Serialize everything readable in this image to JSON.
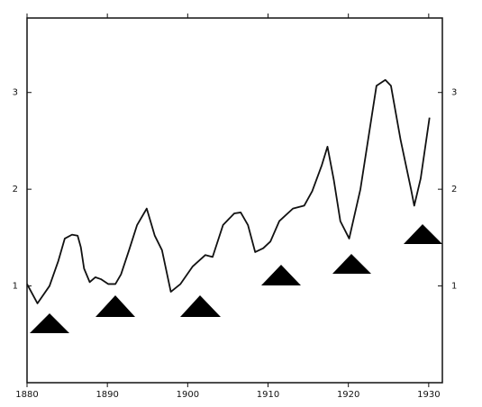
{
  "chart_data": {
    "type": "line",
    "x": [
      1880,
      1881.3,
      1882.8,
      1883.9,
      1884.7,
      1885.6,
      1886.3,
      1886.7,
      1887.1,
      1887.8,
      1888.5,
      1889.2,
      1890.1,
      1891.0,
      1891.7,
      1892.7,
      1893.7,
      1894.9,
      1895.9,
      1896.8,
      1897.9,
      1899.1,
      1900.6,
      1902.2,
      1903.1,
      1904.4,
      1905.8,
      1906.6,
      1907.5,
      1908.4,
      1909.4,
      1910.3,
      1911.4,
      1913.1,
      1914.5,
      1915.5,
      1916.7,
      1917.4,
      1918.2,
      1919.0,
      1920.1,
      1921.5,
      1923.5,
      1924.6,
      1925.3,
      1926.5,
      1927.8,
      1928.2,
      1929.0,
      1930.1
    ],
    "values": [
      1.02,
      0.82,
      1.0,
      1.26,
      1.49,
      1.53,
      1.52,
      1.4,
      1.18,
      1.04,
      1.09,
      1.07,
      1.02,
      1.02,
      1.12,
      1.37,
      1.63,
      1.8,
      1.52,
      1.37,
      0.94,
      1.02,
      1.2,
      1.32,
      1.3,
      1.63,
      1.75,
      1.76,
      1.63,
      1.35,
      1.39,
      1.46,
      1.67,
      1.8,
      1.83,
      1.98,
      2.25,
      2.44,
      2.09,
      1.67,
      1.49,
      2.0,
      3.07,
      3.13,
      3.07,
      2.51,
      2.0,
      1.83,
      2.11,
      2.74
    ],
    "color": "#111111",
    "xlim": [
      1880,
      1931.7
    ],
    "xticks": [
      1880,
      1890,
      1900,
      1910,
      1920,
      1930
    ],
    "ylim": [
      0,
      3.77
    ],
    "yticks": [
      1,
      2,
      3
    ],
    "y2lim": [
      0,
      3.77
    ],
    "y2ticks": [
      1,
      2,
      3
    ],
    "grid": false
  }
}
